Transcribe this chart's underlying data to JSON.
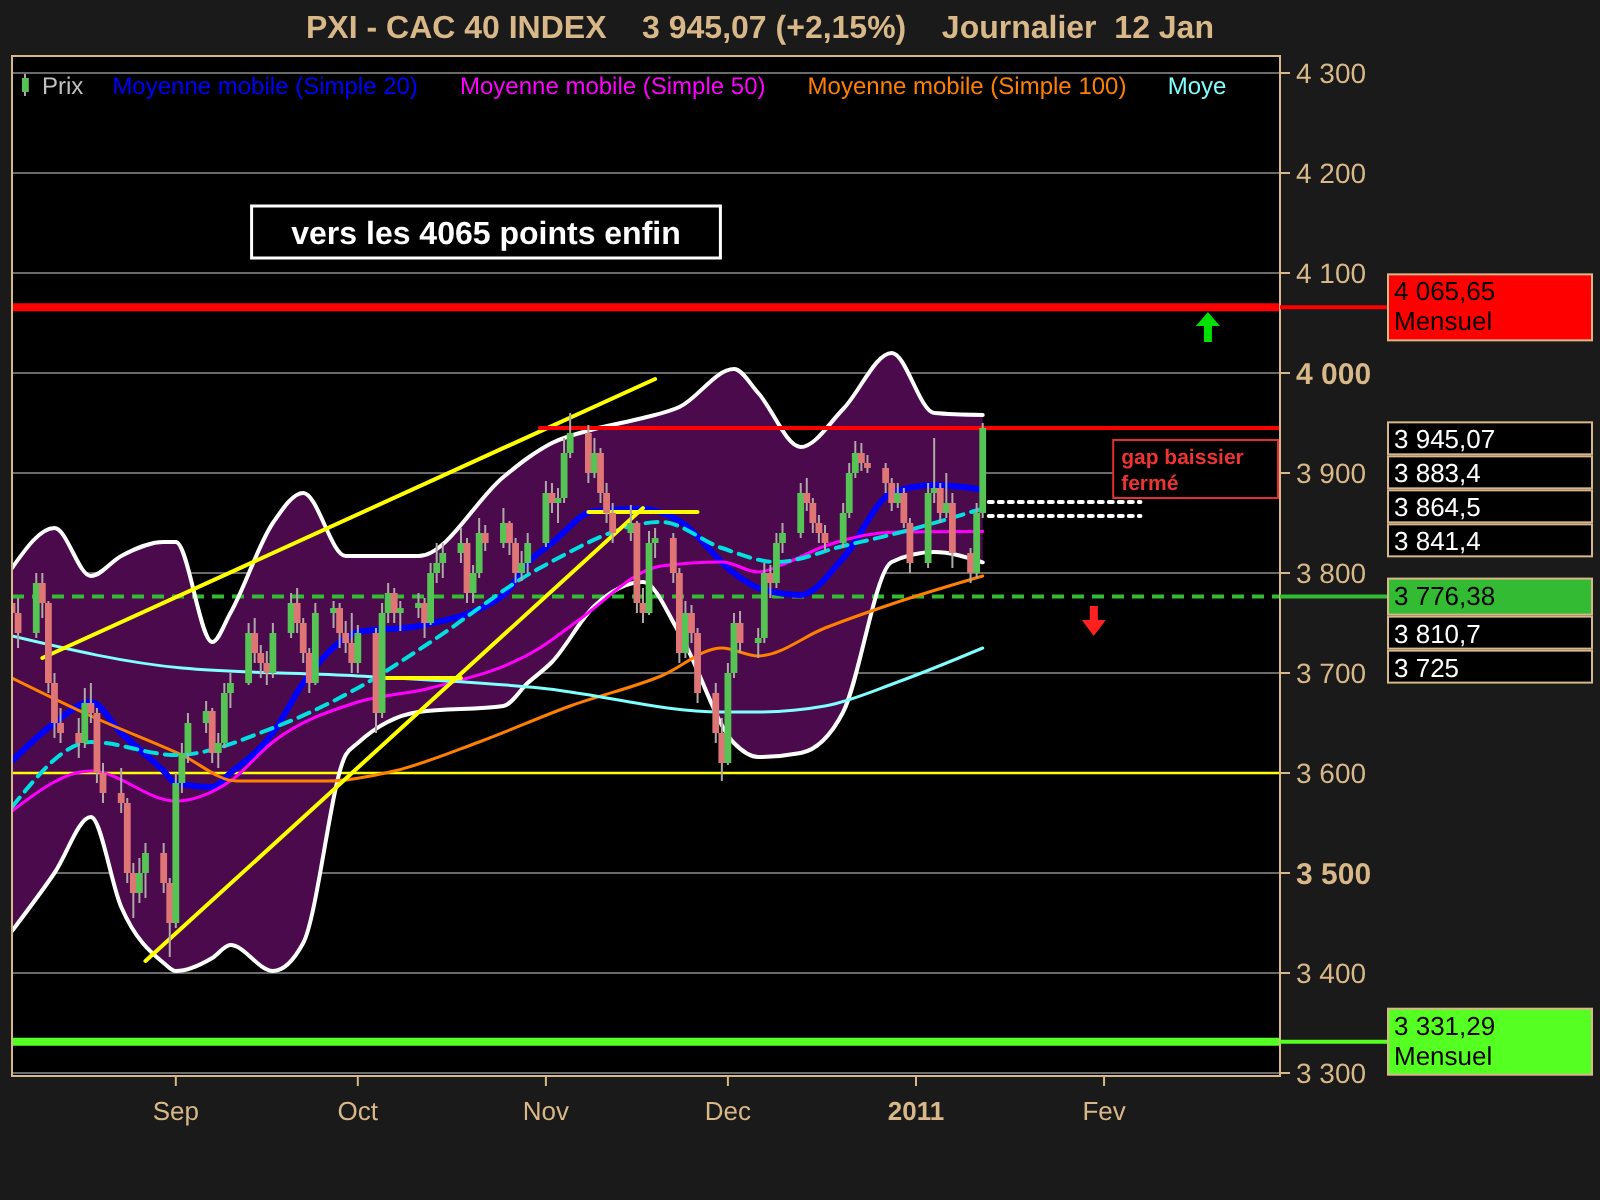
{
  "chart_data": {
    "type": "candlestick",
    "title": "PXI - CAC 40 INDEX    3 945,07 (+2,15%)    Journalier  12 Jan",
    "xlim": [
      "2010-08-05",
      "2011-03-02"
    ],
    "xticks": [
      {
        "value": "2010-09-01",
        "label": "Sep"
      },
      {
        "value": "2010-10-01",
        "label": "Oct"
      },
      {
        "value": "2010-11-01",
        "label": "Nov"
      },
      {
        "value": "2010-12-01",
        "label": "Dec"
      },
      {
        "value": "2011-01-01",
        "label": "2011"
      },
      {
        "value": "2011-02-01",
        "label": "Fev"
      }
    ],
    "ylim": [
      3297,
      4317
    ],
    "yticks": [
      {
        "value": 3300,
        "label": "3 300"
      },
      {
        "value": 3400,
        "label": "3 400"
      },
      {
        "value": 3500,
        "label": "3 500"
      },
      {
        "value": 3600,
        "label": "3 600"
      },
      {
        "value": 3700,
        "label": "3 700"
      },
      {
        "value": 3800,
        "label": "3 800"
      },
      {
        "value": 3900,
        "label": "3 900"
      },
      {
        "value": 4000,
        "label": "4 000"
      },
      {
        "value": 4100,
        "label": "4 100"
      },
      {
        "value": 4200,
        "label": "4 200"
      },
      {
        "value": 4300,
        "label": "4 300"
      }
    ],
    "grid": "y",
    "legend": "top",
    "series": [
      {
        "name": "Prix",
        "x": [
          "2010-08-05",
          "2010-08-06",
          "2010-08-09",
          "2010-08-10",
          "2010-08-11",
          "2010-08-12",
          "2010-08-13",
          "2010-08-16",
          "2010-08-17",
          "2010-08-18",
          "2010-08-19",
          "2010-08-20",
          "2010-08-23",
          "2010-08-24",
          "2010-08-25",
          "2010-08-26",
          "2010-08-27",
          "2010-08-30",
          "2010-08-31",
          "2010-09-01",
          "2010-09-02",
          "2010-09-03",
          "2010-09-06",
          "2010-09-07",
          "2010-09-08",
          "2010-09-09",
          "2010-09-10",
          "2010-09-13",
          "2010-09-14",
          "2010-09-15",
          "2010-09-16",
          "2010-09-17",
          "2010-09-20",
          "2010-09-21",
          "2010-09-22",
          "2010-09-23",
          "2010-09-24",
          "2010-09-27",
          "2010-09-28",
          "2010-09-29",
          "2010-09-30",
          "2010-10-01",
          "2010-10-04",
          "2010-10-05",
          "2010-10-06",
          "2010-10-07",
          "2010-10-08",
          "2010-10-11",
          "2010-10-12",
          "2010-10-13",
          "2010-10-14",
          "2010-10-15",
          "2010-10-18",
          "2010-10-19",
          "2010-10-20",
          "2010-10-21",
          "2010-10-22",
          "2010-10-25",
          "2010-10-26",
          "2010-10-27",
          "2010-10-28",
          "2010-10-29",
          "2010-11-01",
          "2010-11-02",
          "2010-11-03",
          "2010-11-04",
          "2010-11-05",
          "2010-11-08",
          "2010-11-09",
          "2010-11-10",
          "2010-11-11",
          "2010-11-12",
          "2010-11-15",
          "2010-11-16",
          "2010-11-17",
          "2010-11-18",
          "2010-11-19",
          "2010-11-22",
          "2010-11-23",
          "2010-11-24",
          "2010-11-25",
          "2010-11-26",
          "2010-11-29",
          "2010-11-30",
          "2010-12-01",
          "2010-12-02",
          "2010-12-03",
          "2010-12-06",
          "2010-12-07",
          "2010-12-08",
          "2010-12-09",
          "2010-12-10",
          "2010-12-13",
          "2010-12-14",
          "2010-12-15",
          "2010-12-16",
          "2010-12-17",
          "2010-12-20",
          "2010-12-21",
          "2010-12-22",
          "2010-12-23",
          "2010-12-24",
          "2010-12-27",
          "2010-12-28",
          "2010-12-29",
          "2010-12-30",
          "2010-12-31",
          "2011-01-03",
          "2011-01-04",
          "2011-01-05",
          "2011-01-06",
          "2011-01-07",
          "2011-01-10",
          "2011-01-11",
          "2011-01-12"
        ],
        "ohlc": [
          [
            3770,
            3790,
            3745,
            3760
          ],
          [
            3760,
            3775,
            3725,
            3740
          ],
          [
            3740,
            3800,
            3735,
            3790
          ],
          [
            3790,
            3800,
            3755,
            3770
          ],
          [
            3770,
            3772,
            3680,
            3690
          ],
          [
            3690,
            3700,
            3635,
            3650
          ],
          [
            3650,
            3665,
            3630,
            3640
          ],
          [
            3640,
            3655,
            3615,
            3630
          ],
          [
            3630,
            3685,
            3625,
            3670
          ],
          [
            3670,
            3690,
            3650,
            3660
          ],
          [
            3660,
            3665,
            3590,
            3600
          ],
          [
            3600,
            3610,
            3570,
            3580
          ],
          [
            3580,
            3605,
            3560,
            3570
          ],
          [
            3570,
            3575,
            3490,
            3500
          ],
          [
            3500,
            3510,
            3455,
            3480
          ],
          [
            3480,
            3515,
            3470,
            3500
          ],
          [
            3500,
            3530,
            3475,
            3520
          ],
          [
            3520,
            3530,
            3480,
            3490
          ],
          [
            3490,
            3495,
            3416,
            3450
          ],
          [
            3450,
            3600,
            3445,
            3590
          ],
          [
            3590,
            3630,
            3580,
            3620
          ],
          [
            3620,
            3660,
            3610,
            3650
          ],
          [
            3650,
            3672,
            3640,
            3662
          ],
          [
            3662,
            3665,
            3610,
            3620
          ],
          [
            3620,
            3640,
            3605,
            3630
          ],
          [
            3630,
            3690,
            3625,
            3680
          ],
          [
            3680,
            3700,
            3665,
            3690
          ],
          [
            3690,
            3750,
            3688,
            3740
          ],
          [
            3740,
            3755,
            3710,
            3720
          ],
          [
            3720,
            3728,
            3695,
            3710
          ],
          [
            3710,
            3722,
            3688,
            3700
          ],
          [
            3700,
            3750,
            3695,
            3740
          ],
          [
            3740,
            3780,
            3735,
            3770
          ],
          [
            3770,
            3785,
            3740,
            3750
          ],
          [
            3750,
            3755,
            3710,
            3720
          ],
          [
            3720,
            3725,
            3680,
            3690
          ],
          [
            3690,
            3770,
            3688,
            3760
          ],
          [
            3760,
            3772,
            3745,
            3765
          ],
          [
            3765,
            3770,
            3725,
            3740
          ],
          [
            3740,
            3752,
            3720,
            3730
          ],
          [
            3730,
            3760,
            3700,
            3710
          ],
          [
            3710,
            3748,
            3700,
            3740
          ],
          [
            3740,
            3745,
            3640,
            3660
          ],
          [
            3660,
            3770,
            3655,
            3760
          ],
          [
            3760,
            3790,
            3750,
            3780
          ],
          [
            3780,
            3785,
            3750,
            3760
          ],
          [
            3760,
            3772,
            3742,
            3765
          ],
          [
            3765,
            3780,
            3755,
            3770
          ],
          [
            3770,
            3775,
            3735,
            3750
          ],
          [
            3750,
            3810,
            3748,
            3800
          ],
          [
            3800,
            3830,
            3790,
            3810
          ],
          [
            3810,
            3830,
            3795,
            3820
          ],
          [
            3820,
            3845,
            3810,
            3830
          ],
          [
            3830,
            3835,
            3770,
            3780
          ],
          [
            3780,
            3808,
            3770,
            3800
          ],
          [
            3800,
            3855,
            3795,
            3840
          ],
          [
            3840,
            3848,
            3822,
            3830
          ],
          [
            3830,
            3865,
            3825,
            3850
          ],
          [
            3850,
            3852,
            3818,
            3830
          ],
          [
            3830,
            3835,
            3790,
            3800
          ],
          [
            3800,
            3822,
            3792,
            3810
          ],
          [
            3810,
            3840,
            3800,
            3830
          ],
          [
            3830,
            3892,
            3826,
            3880
          ],
          [
            3880,
            3890,
            3860,
            3870
          ],
          [
            3870,
            3885,
            3850,
            3875
          ],
          [
            3875,
            3935,
            3870,
            3920
          ],
          [
            3920,
            3960,
            3915,
            3940
          ],
          [
            3940,
            3948,
            3890,
            3900
          ],
          [
            3900,
            3935,
            3895,
            3920
          ],
          [
            3920,
            3925,
            3870,
            3880
          ],
          [
            3880,
            3890,
            3850,
            3860
          ],
          [
            3860,
            3870,
            3830,
            3840
          ],
          [
            3840,
            3868,
            3832,
            3850
          ],
          [
            3850,
            3852,
            3760,
            3770
          ],
          [
            3770,
            3785,
            3750,
            3760
          ],
          [
            3760,
            3842,
            3758,
            3830
          ],
          [
            3830,
            3845,
            3815,
            3835
          ],
          [
            3835,
            3840,
            3790,
            3800
          ],
          [
            3800,
            3805,
            3710,
            3720
          ],
          [
            3720,
            3772,
            3715,
            3760
          ],
          [
            3760,
            3768,
            3730,
            3740
          ],
          [
            3740,
            3745,
            3670,
            3680
          ],
          [
            3680,
            3690,
            3630,
            3640
          ],
          [
            3640,
            3655,
            3592,
            3610
          ],
          [
            3610,
            3710,
            3608,
            3700
          ],
          [
            3700,
            3760,
            3695,
            3750
          ],
          [
            3750,
            3762,
            3720,
            3730
          ],
          [
            3730,
            3745,
            3715,
            3735
          ],
          [
            3735,
            3810,
            3730,
            3800
          ],
          [
            3800,
            3808,
            3775,
            3790
          ],
          [
            3790,
            3840,
            3785,
            3830
          ],
          [
            3830,
            3850,
            3820,
            3840
          ],
          [
            3840,
            3890,
            3835,
            3880
          ],
          [
            3880,
            3895,
            3862,
            3870
          ],
          [
            3870,
            3875,
            3840,
            3850
          ],
          [
            3850,
            3858,
            3830,
            3840
          ],
          [
            3840,
            3848,
            3822,
            3830
          ],
          [
            3830,
            3870,
            3825,
            3860
          ],
          [
            3860,
            3910,
            3855,
            3900
          ],
          [
            3900,
            3932,
            3895,
            3920
          ],
          [
            3920,
            3930,
            3902,
            3910
          ],
          [
            3910,
            3918,
            3900,
            3905
          ],
          [
            3905,
            3910,
            3880,
            3890
          ],
          [
            3890,
            3895,
            3862,
            3870
          ],
          [
            3870,
            3890,
            3865,
            3880
          ],
          [
            3880,
            3885,
            3845,
            3850
          ],
          [
            3850,
            3855,
            3800,
            3810
          ],
          [
            3810,
            3890,
            3805,
            3880
          ],
          [
            3880,
            3935,
            3870,
            3885
          ],
          [
            3885,
            3890,
            3850,
            3860
          ],
          [
            3860,
            3900,
            3855,
            3870
          ],
          [
            3870,
            3880,
            3805,
            3820
          ],
          [
            3820,
            3825,
            3790,
            3800
          ],
          [
            3800,
            3870,
            3795,
            3860
          ],
          [
            3860,
            3950,
            3855,
            3945
          ]
        ]
      },
      {
        "name": "Moyenne mobile (Simple 20)",
        "type": "line",
        "color": "#0000ff",
        "x": [
          "2010-08-05",
          "2010-08-12",
          "2010-08-18",
          "2010-08-23",
          "2010-08-30",
          "2010-09-01",
          "2010-09-07",
          "2010-09-10",
          "2010-09-17",
          "2010-09-22",
          "2010-09-29",
          "2010-10-01",
          "2010-10-11",
          "2010-10-25",
          "2010-10-29",
          "2010-11-02",
          "2010-11-09",
          "2010-11-17",
          "2010-11-23",
          "2010-12-02",
          "2010-12-06",
          "2010-12-13",
          "2010-12-20",
          "2010-12-28",
          "2011-01-04",
          "2011-01-12"
        ],
        "values": [
          3612,
          3650,
          3671,
          3640,
          3602,
          3590,
          3586,
          3600,
          3640,
          3690,
          3735,
          3741,
          3747,
          3778,
          3810,
          3830,
          3862,
          3864,
          3852,
          3800,
          3785,
          3778,
          3815,
          3880,
          3888,
          3883.4
        ],
        "upper": [
          3805,
          3845,
          3797,
          3817,
          3831,
          3831,
          3731,
          3760,
          3850,
          3880,
          3817,
          3817,
          3817,
          3896,
          3915,
          3930,
          3944,
          3955,
          3966,
          4004,
          3980,
          3926,
          3964,
          4020,
          3960,
          3958
        ],
        "lower": [
          3442,
          3500,
          3556,
          3466,
          3410,
          3402,
          3415,
          3428,
          3402,
          3430,
          3618,
          3630,
          3661,
          3667,
          3690,
          3711,
          3767,
          3791,
          3740,
          3630,
          3616,
          3620,
          3661,
          3811,
          3821,
          3810.7
        ]
      },
      {
        "type": "line",
        "color": "#ffffff",
        "x": [
          "2010-08-05",
          "2010-08-12",
          "2010-08-18",
          "2010-08-23",
          "2010-08-30",
          "2010-09-01",
          "2010-09-07",
          "2010-09-10",
          "2010-09-17",
          "2010-09-22",
          "2010-09-29",
          "2010-10-01",
          "2010-10-11",
          "2010-10-25",
          "2010-10-29",
          "2010-11-02",
          "2010-11-09",
          "2010-11-17",
          "2010-11-23",
          "2010-12-02",
          "2010-12-06",
          "2010-12-13",
          "2010-12-20",
          "2010-12-28",
          "2011-01-04",
          "2011-01-12"
        ],
        "values": [
          3805,
          3845,
          3797,
          3817,
          3831,
          3831,
          3731,
          3760,
          3850,
          3880,
          3817,
          3817,
          3817,
          3896,
          3915,
          3930,
          3944,
          3955,
          3966,
          4004,
          3980,
          3926,
          3964,
          4020,
          3960,
          3958
        ]
      },
      {
        "type": "line",
        "color": "#ffffff",
        "x": [
          "2010-08-05",
          "2010-08-12",
          "2010-08-18",
          "2010-08-23",
          "2010-08-30",
          "2010-09-01",
          "2010-09-07",
          "2010-09-10",
          "2010-09-17",
          "2010-09-22",
          "2010-09-29",
          "2010-10-01",
          "2010-10-11",
          "2010-10-25",
          "2010-10-29",
          "2010-11-02",
          "2010-11-09",
          "2010-11-17",
          "2010-11-23",
          "2010-12-02",
          "2010-12-06",
          "2010-12-13",
          "2010-12-20",
          "2010-12-28",
          "2011-01-04",
          "2011-01-12"
        ],
        "values": [
          3442,
          3500,
          3556,
          3466,
          3410,
          3402,
          3415,
          3428,
          3402,
          3430,
          3618,
          3630,
          3661,
          3667,
          3690,
          3711,
          3767,
          3791,
          3740,
          3630,
          3616,
          3620,
          3661,
          3811,
          3821,
          3810.7
        ]
      },
      {
        "name": "Moyenne mobile (Simple 50)",
        "type": "line",
        "color": "#ff00ff",
        "x": [
          "2010-08-05",
          "2010-08-18",
          "2010-09-01",
          "2010-09-10",
          "2010-09-17",
          "2010-10-01",
          "2010-10-13",
          "2010-10-31",
          "2010-11-06",
          "2010-11-20",
          "2010-11-30",
          "2010-12-06",
          "2010-12-11",
          "2010-12-17",
          "2010-12-29",
          "2011-01-12"
        ],
        "values": [
          3562,
          3602,
          3572,
          3592,
          3631,
          3671,
          3685,
          3725,
          3751,
          3807,
          3811,
          3801,
          3811,
          3827,
          3841,
          3841.4
        ]
      },
      {
        "name": "Moyenne mobile (Simple 100)",
        "type": "line",
        "color": "#ff8000",
        "x": [
          "2010-08-05",
          "2010-08-18",
          "2010-09-02",
          "2010-09-11",
          "2010-09-26",
          "2010-10-07",
          "2010-10-21",
          "2010-11-05",
          "2010-11-20",
          "2010-11-30",
          "2010-12-06",
          "2010-12-17",
          "2010-12-29",
          "2011-01-12"
        ],
        "values": [
          3695,
          3657,
          3618,
          3592,
          3592,
          3602,
          3631,
          3667,
          3697,
          3725,
          3717,
          3745,
          3771,
          3797
        ]
      },
      {
        "name": "Moye",
        "type": "line",
        "color": "#80ffff",
        "x": [
          "2010-08-05",
          "2010-09-02",
          "2010-10-01",
          "2010-10-31",
          "2010-11-30",
          "2010-12-06",
          "2010-12-17",
          "2010-12-29",
          "2011-01-12"
        ],
        "values": [
          3737,
          3705,
          3697,
          3685,
          3661,
          3661,
          3667,
          3691,
          3725
        ]
      },
      {
        "type": "line",
        "color": "#00e0e0",
        "line_style": "dashed",
        "x": [
          "2010-08-05",
          "2010-08-18",
          "2010-09-01",
          "2010-09-17",
          "2010-10-01",
          "2010-10-13",
          "2010-10-31",
          "2010-11-20",
          "2010-11-30",
          "2010-12-09",
          "2010-12-20",
          "2010-12-29",
          "2011-01-12"
        ],
        "values": [
          3566,
          3631,
          3618,
          3645,
          3685,
          3731,
          3805,
          3851,
          3825,
          3811,
          3827,
          3840,
          3864.5
        ]
      },
      {
        "type": "line",
        "color": "#ffff00",
        "x": [
          "2010-08-10",
          "2010-11-19"
        ],
        "values": [
          3715,
          3994
        ]
      },
      {
        "type": "line",
        "color": "#ffff00",
        "x": [
          "2010-08-27",
          "2010-11-17"
        ],
        "values": [
          3412,
          3865
        ]
      },
      {
        "type": "line",
        "color": "#ffff00",
        "x": [
          "2010-11-08",
          "2010-11-26"
        ],
        "values": [
          3861,
          3861
        ]
      },
      {
        "type": "line",
        "color": "#ffff00",
        "x": [
          "2010-10-05",
          "2010-10-18"
        ],
        "values": [
          3695,
          3695
        ]
      },
      {
        "type": "line",
        "color": "#ff0000",
        "x": [
          "2010-10-31",
          "2011-03-02"
        ],
        "values": [
          3945,
          3945
        ]
      },
      {
        "type": "line",
        "color": "#ffffff",
        "line_style": "dotted",
        "x": [
          "2011-01-13",
          "2011-02-07"
        ],
        "values": [
          3871,
          3871
        ]
      },
      {
        "type": "line",
        "color": "#ffffff",
        "line_style": "dotted",
        "x": [
          "2011-01-13",
          "2011-02-07"
        ],
        "values": [
          3857,
          3857
        ]
      }
    ],
    "ref_lines": [
      {
        "axis": "y",
        "value": 4065.65,
        "label": "4 065,65\nMensuel",
        "color": "#ff0000"
      },
      {
        "axis": "y",
        "value": 3776.38,
        "label": "3 776,38",
        "color": "#33bb33",
        "line_style": "dashed"
      },
      {
        "axis": "y",
        "value": 3331.29,
        "label": "3 331,29\nMensuel",
        "color": "#55ff22"
      },
      {
        "axis": "y",
        "value": 3600,
        "color": "#ffff00"
      }
    ],
    "annotations": [
      "vers les 4065 points enfin",
      {
        "text": "gap baissier fermé",
        "x": "2011-02-07",
        "y": 3871
      },
      "3 945,07",
      "3 883,4",
      "3 864,5",
      "3 841,4",
      "3 810,7",
      "3 725"
    ]
  }
}
